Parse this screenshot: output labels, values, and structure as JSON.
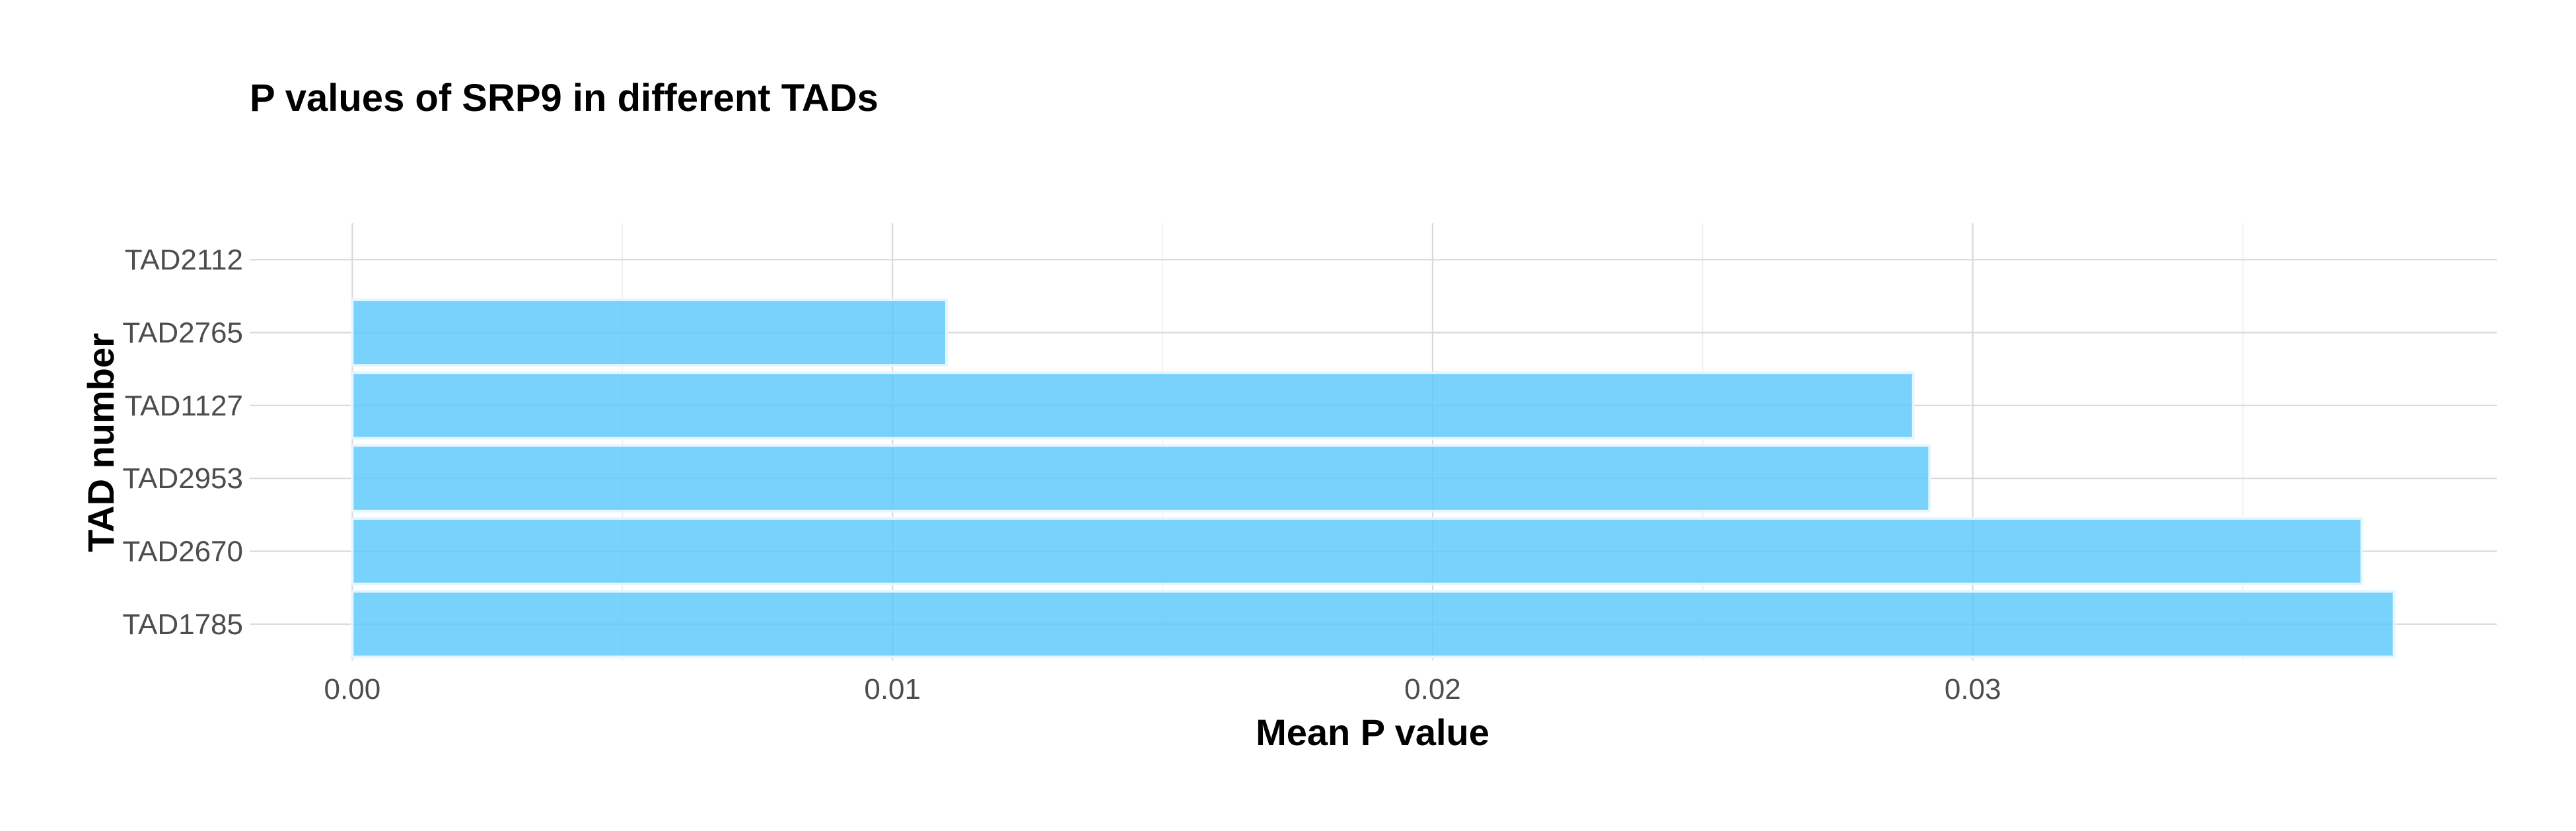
{
  "chart_data": {
    "type": "bar",
    "orientation": "horizontal",
    "title": "P values of SRP9 in different TADs",
    "xlabel": "Mean P value",
    "ylabel": "TAD number",
    "categories": [
      "TAD1785",
      "TAD2670",
      "TAD2953",
      "TAD1127",
      "TAD2765",
      "TAD2112"
    ],
    "values": [
      0.0378,
      0.0372,
      0.0292,
      0.0289,
      0.011,
      0.0
    ],
    "xlim": [
      -0.0019,
      0.0397
    ],
    "x_ticks": [
      "0.00",
      "0.01",
      "0.02",
      "0.03"
    ],
    "x_tick_values": [
      0.0,
      0.01,
      0.02,
      0.03
    ],
    "x_minor_tick_values": [
      0.005,
      0.015,
      0.025,
      0.035
    ],
    "grid": true,
    "legend": "none",
    "bar_color": "#5ac8fa"
  }
}
